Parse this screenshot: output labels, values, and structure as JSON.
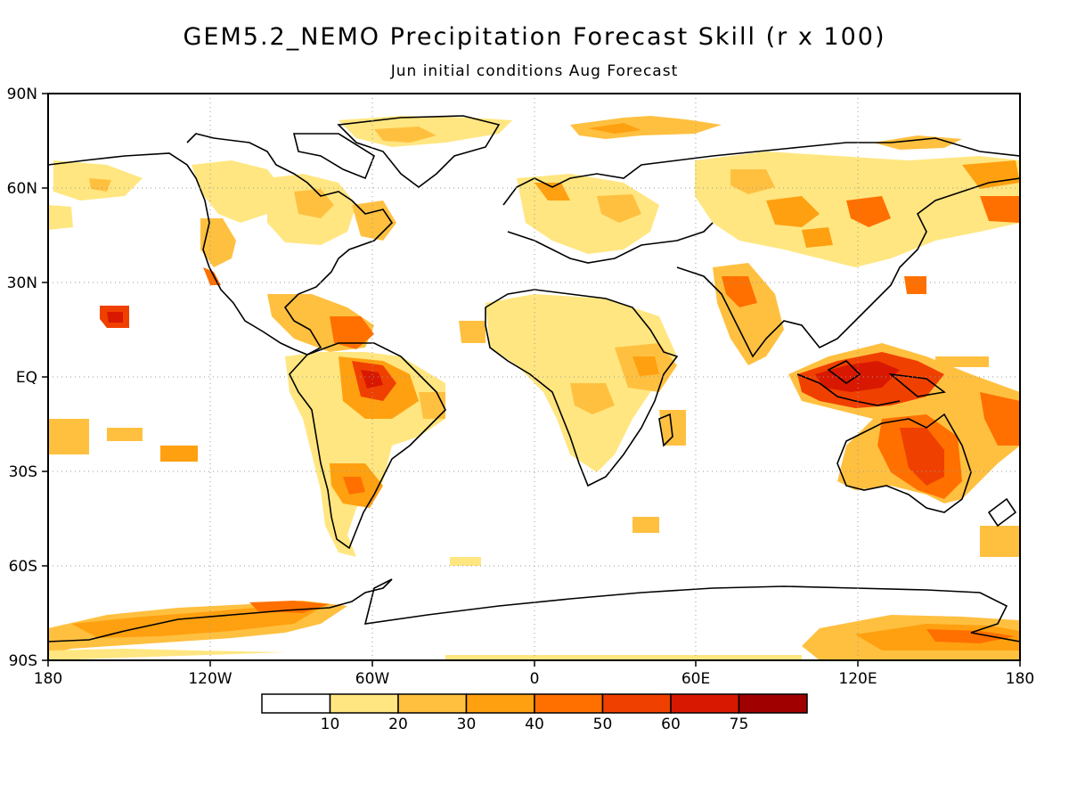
{
  "title": "GEM5.2_NEMO Precipitation Forecast Skill (r x 100)",
  "subtitle": "Jun initial conditions  Aug Forecast",
  "axes": {
    "x_ticks": [
      "180",
      "120W",
      "60W",
      "0",
      "60E",
      "120E",
      "180"
    ],
    "y_ticks": [
      "90N",
      "60N",
      "30N",
      "EQ",
      "30S",
      "60S",
      "90S"
    ]
  },
  "legend": {
    "thresholds": [
      "10",
      "20",
      "30",
      "40",
      "50",
      "60",
      "75"
    ],
    "colors": [
      "#ffffff",
      "#ffe680",
      "#ffc040",
      "#ffa010",
      "#ff7000",
      "#f04000",
      "#d81800",
      "#a00000"
    ]
  }
}
